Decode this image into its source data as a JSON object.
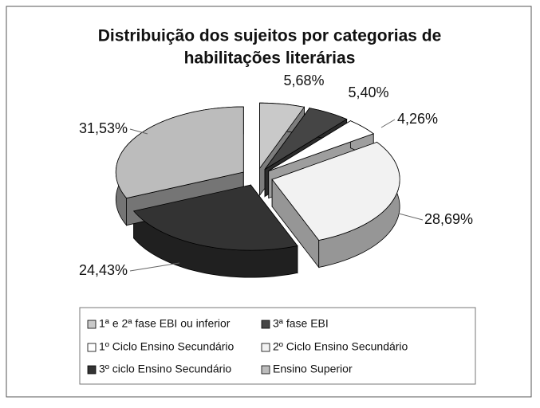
{
  "chart_data": {
    "type": "pie",
    "title": [
      "Distribuição dos sujeitos por categorias de",
      "habilitações literárias"
    ],
    "categories": [
      "1ª e 2ª fase EBI ou inferior",
      "3ª fase EBI",
      "1º Ciclo Ensino Secundário",
      "2º Ciclo Ensino Secundário",
      "3º ciclo Ensino Secundário",
      "Ensino Superior"
    ],
    "values": [
      5.68,
      5.4,
      4.26,
      28.69,
      24.43,
      31.53
    ],
    "value_labels": [
      "5,68%",
      "5,40%",
      "4,26%",
      "28,69%",
      "24,43%",
      "31,53%"
    ],
    "colors": [
      "#c9c9c9",
      "#454545",
      "#ffffff",
      "#f2f2f2",
      "#333333",
      "#bcbcbc"
    ],
    "legend": "bottom"
  }
}
